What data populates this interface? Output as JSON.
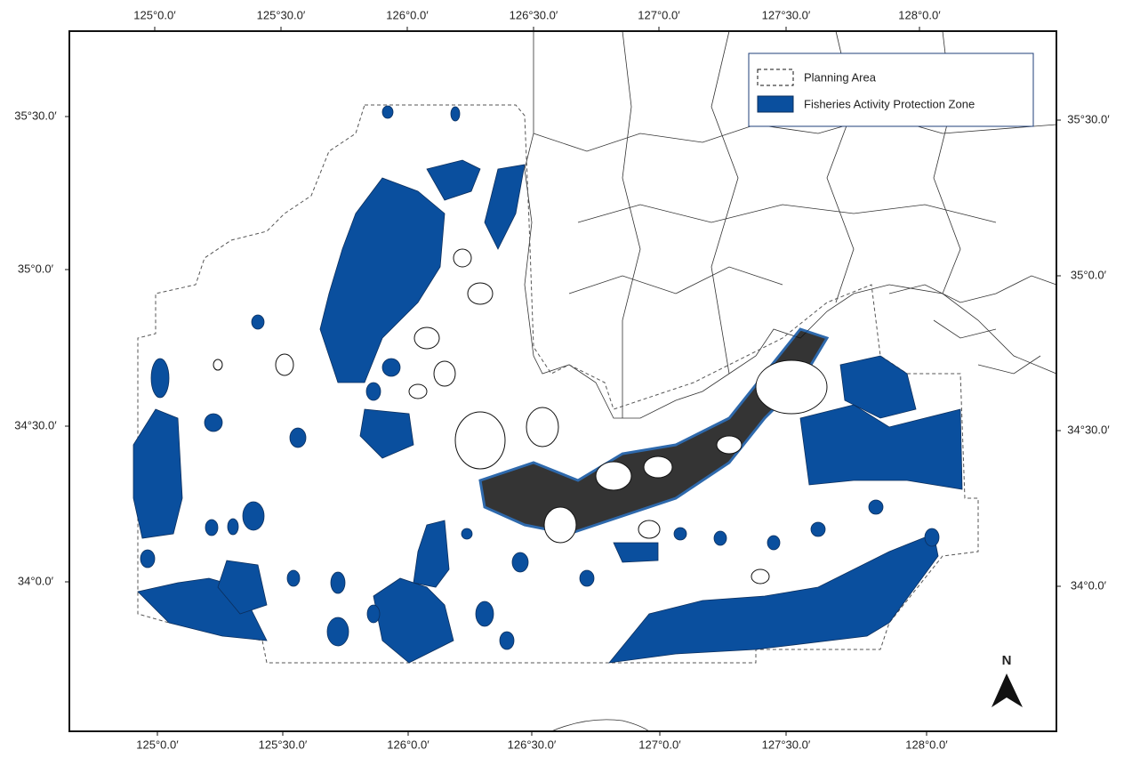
{
  "map": {
    "x_labels": [
      "125°0.0′",
      "125°30.0′",
      "126°0.0′",
      "126°30.0′",
      "127°0.0′",
      "127°30.0′",
      "128°0.0′"
    ],
    "y_labels": [
      "35°30.0′",
      "35°0.0′",
      "34°30.0′",
      "34°0.0′"
    ],
    "legend": [
      "Planning Area",
      "Fisheries Activity Protection Zone"
    ],
    "north": "N"
  }
}
